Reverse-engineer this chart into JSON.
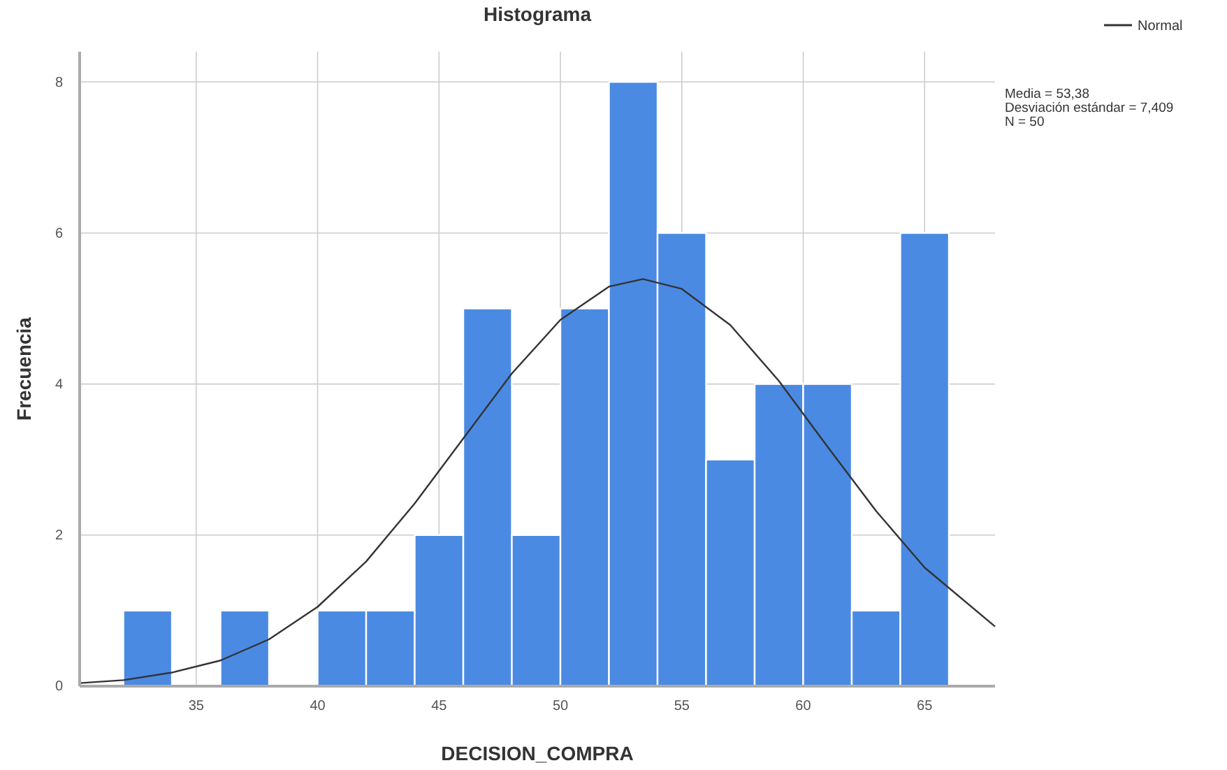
{
  "chart_data": {
    "type": "histogram",
    "title": "Histograma",
    "xlabel": "DECISION_COMPRA",
    "ylabel": "Frecuencia",
    "bins": [
      32,
      34,
      36,
      38,
      40,
      42,
      44,
      46,
      48,
      50,
      52,
      54,
      56,
      58,
      60,
      62,
      64,
      66
    ],
    "series": [
      {
        "color": "#4a8ae3",
        "values": [
          1,
          0,
          1,
          0,
          1,
          1,
          2,
          5,
          2,
          5,
          8,
          6,
          3,
          4,
          4,
          1,
          6
        ]
      },
      {
        "type": "line",
        "name": "Normal",
        "color": "#333333",
        "x": [
          30.2,
          32,
          34,
          36,
          38,
          40,
          42,
          44,
          46,
          48,
          50,
          52,
          53.4,
          55,
          57,
          59,
          61,
          63,
          65,
          67.9
        ],
        "values": [
          0.04,
          0.08,
          0.18,
          0.34,
          0.62,
          1.05,
          1.65,
          2.42,
          3.28,
          4.14,
          4.85,
          5.29,
          5.39,
          5.26,
          4.78,
          4.04,
          3.17,
          2.32,
          1.57,
          0.79
        ]
      }
    ],
    "xlim": [
      30.2,
      67.9
    ],
    "xticks": [
      35,
      40,
      45,
      50,
      55,
      60,
      65
    ],
    "ylim": [
      0,
      8.4
    ],
    "yticks": [
      0,
      2,
      4,
      6,
      8
    ],
    "grid": true,
    "legend": "top right",
    "marker": "none",
    "annotations": [
      "Media = 53,38",
      "Desviación estándar = 7,409",
      "N = 50"
    ]
  }
}
